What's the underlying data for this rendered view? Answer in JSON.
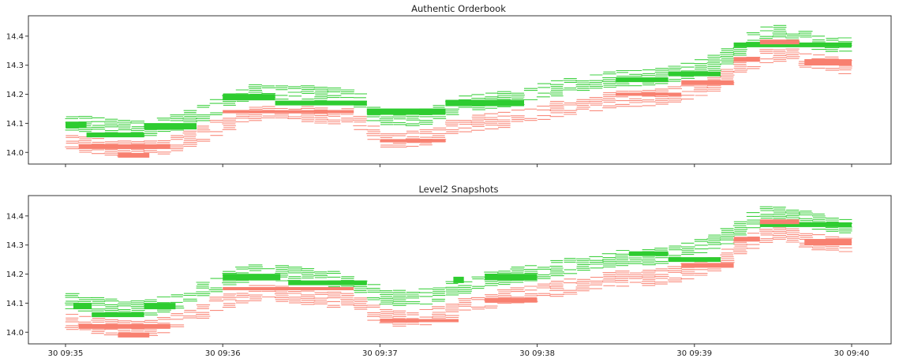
{
  "colors": {
    "bid": "#2ecc30",
    "ask": "#f88070",
    "background": "#ffffff",
    "axis": "#333333"
  },
  "chart_data": [
    {
      "type": "orderbook-heatmap",
      "title": "Authentic Orderbook",
      "xlabel": "",
      "ylabel": "",
      "x_ticks": [
        "30 09:35",
        "30 09:36",
        "30 09:37",
        "30 09:38",
        "30 09:39",
        "30 09:40"
      ],
      "x_tick_labels_visible": false,
      "y_ticks": [
        14.0,
        14.1,
        14.2,
        14.3,
        14.4
      ],
      "y_tick_labels": [
        "14.0",
        "14.1",
        "14.2",
        "14.3",
        "14.4"
      ],
      "ylim": [
        13.96,
        14.47
      ],
      "grid": false,
      "mid_price": [
        {
          "t": "09:35:00",
          "p": 14.07
        },
        {
          "t": "09:35:10",
          "p": 14.06
        },
        {
          "t": "09:35:20",
          "p": 14.05
        },
        {
          "t": "09:35:30",
          "p": 14.045
        },
        {
          "t": "09:35:40",
          "p": 14.06
        },
        {
          "t": "09:35:50",
          "p": 14.09
        },
        {
          "t": "09:36:00",
          "p": 14.13
        },
        {
          "t": "09:36:10",
          "p": 14.17
        },
        {
          "t": "09:36:20",
          "p": 14.175
        },
        {
          "t": "09:36:30",
          "p": 14.17
        },
        {
          "t": "09:36:40",
          "p": 14.16
        },
        {
          "t": "09:36:50",
          "p": 14.16
        },
        {
          "t": "09:37:00",
          "p": 14.08
        },
        {
          "t": "09:37:10",
          "p": 14.08
        },
        {
          "t": "09:37:20",
          "p": 14.09
        },
        {
          "t": "09:37:30",
          "p": 14.13
        },
        {
          "t": "09:37:40",
          "p": 14.14
        },
        {
          "t": "09:37:50",
          "p": 14.15
        },
        {
          "t": "09:38:00",
          "p": 14.17
        },
        {
          "t": "09:38:10",
          "p": 14.19
        },
        {
          "t": "09:38:20",
          "p": 14.2
        },
        {
          "t": "09:38:30",
          "p": 14.22
        },
        {
          "t": "09:38:40",
          "p": 14.22
        },
        {
          "t": "09:38:50",
          "p": 14.23
        },
        {
          "t": "09:39:00",
          "p": 14.25
        },
        {
          "t": "09:39:10",
          "p": 14.28
        },
        {
          "t": "09:39:20",
          "p": 14.34
        },
        {
          "t": "09:39:30",
          "p": 14.38
        },
        {
          "t": "09:39:40",
          "p": 14.36
        },
        {
          "t": "09:39:50",
          "p": 14.34
        },
        {
          "t": "09:40:00",
          "p": 14.33
        }
      ],
      "series": [
        {
          "name": "",
          "side": "bid",
          "levels": [
            {
              "t0": "09:35:00",
              "t1": "09:35:08",
              "p": 14.095,
              "s": 3
            },
            {
              "t0": "09:35:08",
              "t1": "09:35:30",
              "p": 14.06,
              "s": 2
            },
            {
              "t0": "09:35:30",
              "t1": "09:35:50",
              "p": 14.09,
              "s": 3
            },
            {
              "t0": "09:36:00",
              "t1": "09:36:20",
              "p": 14.19,
              "s": 3
            },
            {
              "t0": "09:36:20",
              "t1": "09:36:55",
              "p": 14.17,
              "s": 2
            },
            {
              "t0": "09:36:55",
              "t1": "09:37:25",
              "p": 14.14,
              "s": 3
            },
            {
              "t0": "09:37:25",
              "t1": "09:37:55",
              "p": 14.17,
              "s": 3
            },
            {
              "t0": "09:38:30",
              "t1": "09:38:50",
              "p": 14.25,
              "s": 2
            },
            {
              "t0": "09:38:50",
              "t1": "09:39:10",
              "p": 14.27,
              "s": 2
            },
            {
              "t0": "09:39:15",
              "t1": "09:40:00",
              "p": 14.37,
              "s": 2
            }
          ]
        },
        {
          "name": "",
          "side": "ask",
          "levels": [
            {
              "t0": "09:35:05",
              "t1": "09:35:40",
              "p": 14.02,
              "s": 2
            },
            {
              "t0": "09:35:20",
              "t1": "09:35:32",
              "p": 13.99,
              "s": 2
            },
            {
              "t0": "09:36:00",
              "t1": "09:36:50",
              "p": 14.14,
              "s": 1
            },
            {
              "t0": "09:37:00",
              "t1": "09:37:25",
              "p": 14.04,
              "s": 1
            },
            {
              "t0": "09:38:30",
              "t1": "09:38:55",
              "p": 14.2,
              "s": 1
            },
            {
              "t0": "09:38:55",
              "t1": "09:39:15",
              "p": 14.24,
              "s": 2
            },
            {
              "t0": "09:39:15",
              "t1": "09:39:25",
              "p": 14.32,
              "s": 2
            },
            {
              "t0": "09:39:25",
              "t1": "09:39:40",
              "p": 14.38,
              "s": 2
            },
            {
              "t0": "09:39:42",
              "t1": "09:40:00",
              "p": 14.31,
              "s": 3
            }
          ]
        }
      ]
    },
    {
      "type": "orderbook-heatmap",
      "title": "Level2 Snapshots",
      "xlabel": "",
      "ylabel": "",
      "x_ticks": [
        "30 09:35",
        "30 09:36",
        "30 09:37",
        "30 09:38",
        "30 09:39",
        "30 09:40"
      ],
      "x_tick_labels_visible": true,
      "y_ticks": [
        14.0,
        14.1,
        14.2,
        14.3,
        14.4
      ],
      "y_tick_labels": [
        "14.0",
        "14.1",
        "14.2",
        "14.3",
        "14.4"
      ],
      "ylim": [
        13.96,
        14.47
      ],
      "grid": false,
      "mid_price": [
        {
          "t": "09:35:00",
          "p": 14.075
        },
        {
          "t": "09:35:10",
          "p": 14.06
        },
        {
          "t": "09:35:20",
          "p": 14.05
        },
        {
          "t": "09:35:30",
          "p": 14.045
        },
        {
          "t": "09:35:40",
          "p": 14.065
        },
        {
          "t": "09:35:50",
          "p": 14.1
        },
        {
          "t": "09:36:00",
          "p": 14.14
        },
        {
          "t": "09:36:10",
          "p": 14.17
        },
        {
          "t": "09:36:20",
          "p": 14.17
        },
        {
          "t": "09:36:30",
          "p": 14.16
        },
        {
          "t": "09:36:40",
          "p": 14.15
        },
        {
          "t": "09:36:50",
          "p": 14.14
        },
        {
          "t": "09:37:00",
          "p": 14.09
        },
        {
          "t": "09:37:10",
          "p": 14.08
        },
        {
          "t": "09:37:20",
          "p": 14.09
        },
        {
          "t": "09:37:30",
          "p": 14.12
        },
        {
          "t": "09:37:40",
          "p": 14.14
        },
        {
          "t": "09:37:50",
          "p": 14.16
        },
        {
          "t": "09:38:00",
          "p": 14.17
        },
        {
          "t": "09:38:10",
          "p": 14.19
        },
        {
          "t": "09:38:20",
          "p": 14.2
        },
        {
          "t": "09:38:30",
          "p": 14.22
        },
        {
          "t": "09:38:40",
          "p": 14.22
        },
        {
          "t": "09:38:50",
          "p": 14.23
        },
        {
          "t": "09:39:00",
          "p": 14.25
        },
        {
          "t": "09:39:10",
          "p": 14.28
        },
        {
          "t": "09:39:20",
          "p": 14.34
        },
        {
          "t": "09:39:30",
          "p": 14.38
        },
        {
          "t": "09:39:40",
          "p": 14.36
        },
        {
          "t": "09:39:50",
          "p": 14.34
        },
        {
          "t": "09:40:00",
          "p": 14.33
        }
      ],
      "series": [
        {
          "name": "",
          "side": "bid",
          "levels": [
            {
              "t0": "09:35:03",
              "t1": "09:35:10",
              "p": 14.09,
              "s": 3
            },
            {
              "t0": "09:35:10",
              "t1": "09:35:30",
              "p": 14.06,
              "s": 2
            },
            {
              "t0": "09:35:30",
              "t1": "09:35:42",
              "p": 14.09,
              "s": 3
            },
            {
              "t0": "09:36:00",
              "t1": "09:36:22",
              "p": 14.19,
              "s": 3
            },
            {
              "t0": "09:36:25",
              "t1": "09:36:55",
              "p": 14.17,
              "s": 2
            },
            {
              "t0": "09:37:28",
              "t1": "09:37:32",
              "p": 14.18,
              "s": 3
            },
            {
              "t0": "09:37:40",
              "t1": "09:38:00",
              "p": 14.19,
              "s": 3
            },
            {
              "t0": "09:38:35",
              "t1": "09:38:50",
              "p": 14.27,
              "s": 2
            },
            {
              "t0": "09:38:50",
              "t1": "09:39:10",
              "p": 14.25,
              "s": 2
            },
            {
              "t0": "09:39:25",
              "t1": "09:40:00",
              "p": 14.37,
              "s": 2
            }
          ]
        },
        {
          "name": "",
          "side": "ask",
          "levels": [
            {
              "t0": "09:35:05",
              "t1": "09:35:40",
              "p": 14.02,
              "s": 2
            },
            {
              "t0": "09:35:20",
              "t1": "09:35:32",
              "p": 13.99,
              "s": 2
            },
            {
              "t0": "09:36:00",
              "t1": "09:36:50",
              "p": 14.15,
              "s": 1
            },
            {
              "t0": "09:37:00",
              "t1": "09:37:30",
              "p": 14.04,
              "s": 1
            },
            {
              "t0": "09:37:40",
              "t1": "09:38:00",
              "p": 14.11,
              "s": 2
            },
            {
              "t0": "09:38:55",
              "t1": "09:39:15",
              "p": 14.23,
              "s": 2
            },
            {
              "t0": "09:39:15",
              "t1": "09:39:25",
              "p": 14.32,
              "s": 2
            },
            {
              "t0": "09:39:25",
              "t1": "09:39:40",
              "p": 14.38,
              "s": 2
            },
            {
              "t0": "09:39:42",
              "t1": "09:40:00",
              "p": 14.31,
              "s": 3
            }
          ]
        }
      ]
    }
  ]
}
